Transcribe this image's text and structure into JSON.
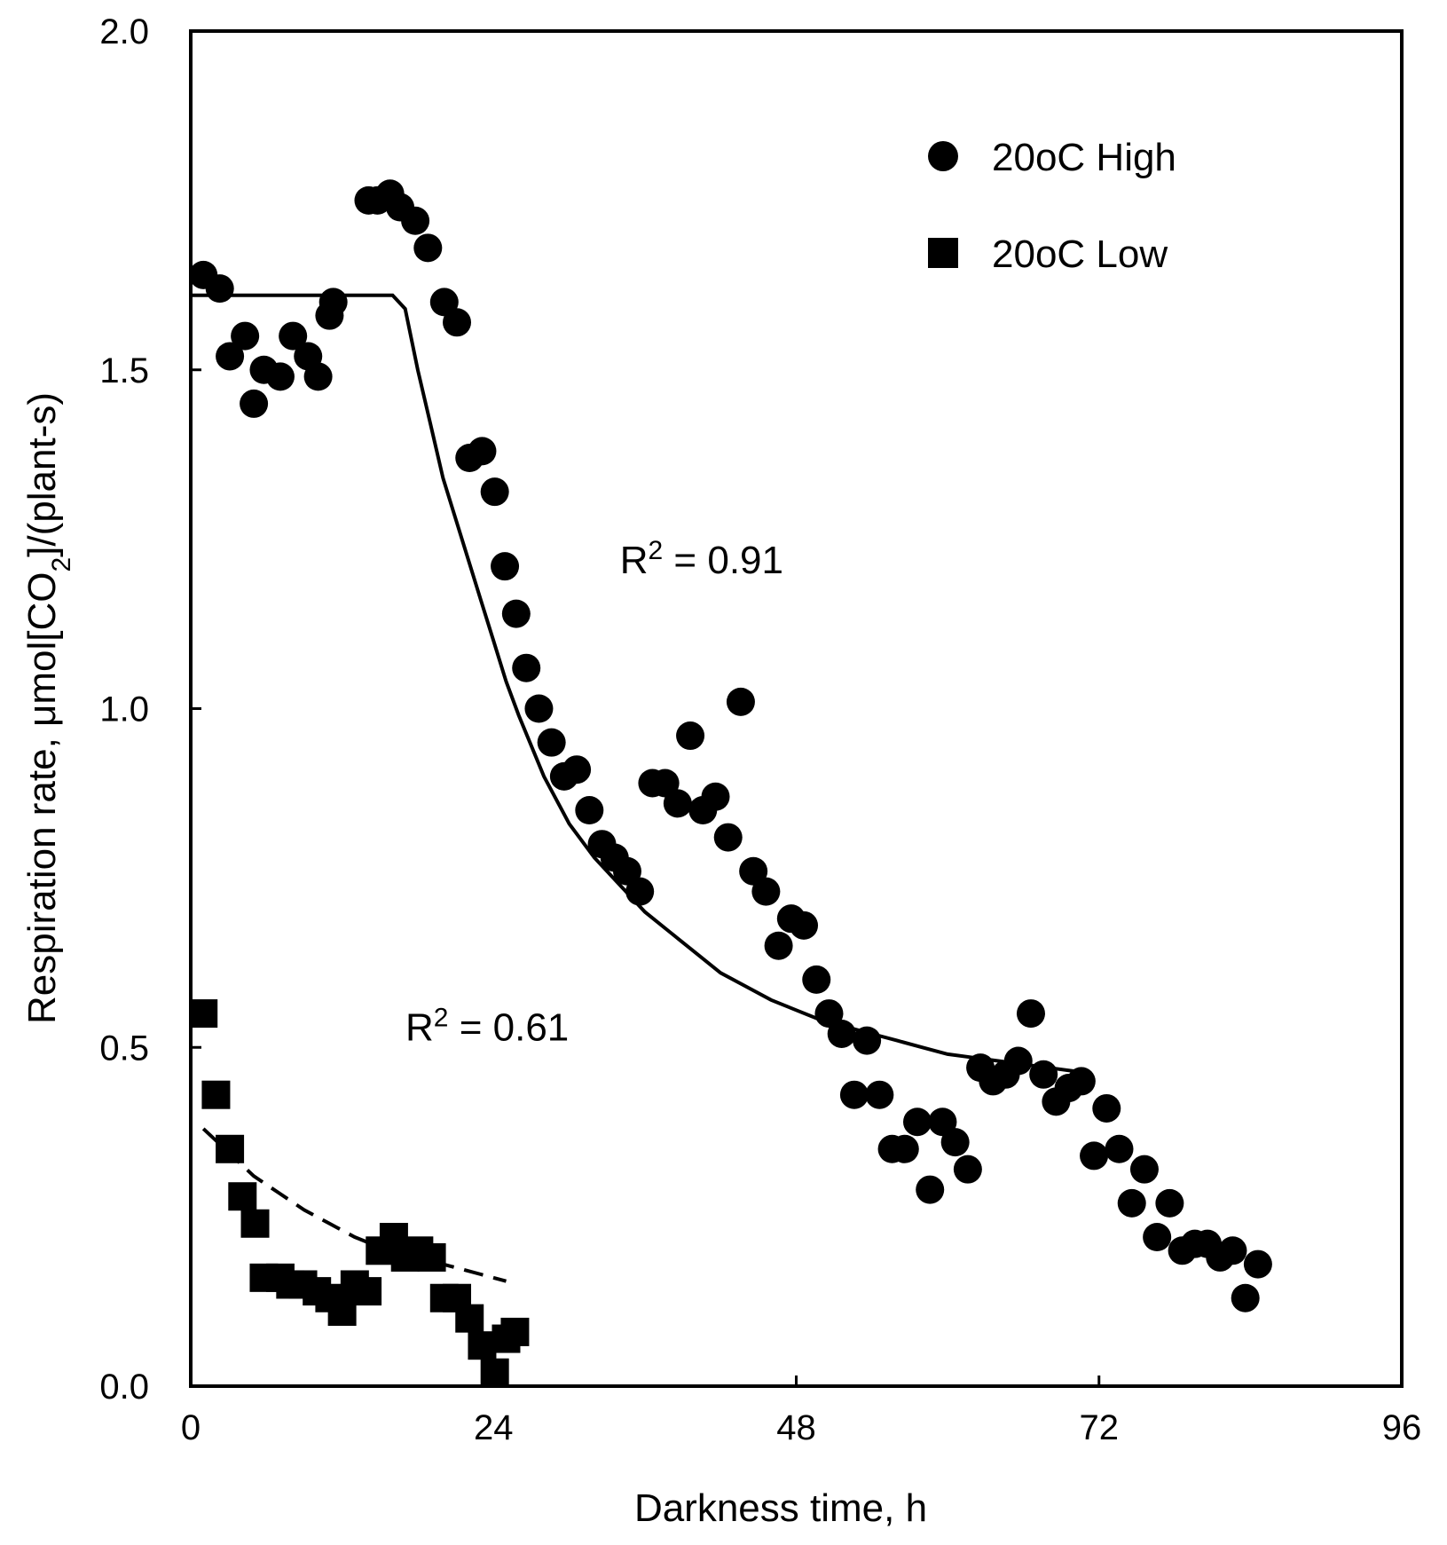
{
  "chart_data": {
    "type": "scatter",
    "title": "",
    "xlabel": "Darkness time, h",
    "ylabel": "Respiration rate, μmol[CO2]/(plant-s)",
    "ylabel_parts": {
      "main": "Respiration rate, μmol[CO",
      "sub": "2",
      "tail": "]/(plant-s)"
    },
    "xlim": [
      0,
      96
    ],
    "ylim": [
      0,
      2.0
    ],
    "xticks": [
      0,
      24,
      48,
      72,
      96
    ],
    "xtick_labels": [
      "0",
      "24",
      "48",
      "72",
      "96"
    ],
    "yticks": [
      0,
      0.5,
      1.0,
      1.5,
      2.0
    ],
    "ytick_labels": [
      "0.0",
      "0.5",
      "1.0",
      "1.5",
      "2.0"
    ],
    "grid": false,
    "legend_position": "top-right",
    "series": [
      {
        "name": "20oC High",
        "marker": "circle",
        "color": "#000000",
        "x": [
          1.0,
          2.3,
          3.1,
          4.3,
          5.0,
          5.8,
          7.1,
          8.1,
          9.3,
          10.1,
          11.0,
          11.3,
          14.1,
          14.8,
          15.8,
          16.6,
          17.8,
          18.8,
          20.1,
          21.1,
          22.1,
          23.1,
          24.1,
          24.9,
          25.8,
          26.6,
          27.6,
          28.6,
          29.6,
          30.6,
          31.6,
          32.6,
          33.6,
          34.6,
          35.6,
          36.6,
          37.6,
          38.6,
          39.6,
          40.6,
          41.6,
          42.6,
          43.6,
          44.6,
          45.6,
          46.6,
          47.6,
          48.6,
          49.6,
          50.6,
          51.6,
          52.6,
          53.6,
          54.6,
          55.6,
          56.6,
          57.6,
          58.6,
          59.6,
          60.6,
          61.6,
          62.6,
          63.6,
          64.6,
          65.6,
          66.6,
          67.6,
          68.6,
          69.6,
          70.6,
          71.6,
          72.6,
          73.6,
          74.6,
          75.6,
          76.6,
          77.6,
          78.6,
          79.6,
          80.6,
          81.6,
          82.6,
          83.6,
          84.6
        ],
        "y": [
          1.64,
          1.62,
          1.52,
          1.55,
          1.45,
          1.5,
          1.49,
          1.55,
          1.52,
          1.49,
          1.58,
          1.6,
          1.75,
          1.75,
          1.76,
          1.74,
          1.72,
          1.68,
          1.6,
          1.57,
          1.37,
          1.38,
          1.32,
          1.21,
          1.14,
          1.06,
          1.0,
          0.95,
          0.9,
          0.91,
          0.85,
          0.8,
          0.78,
          0.76,
          0.73,
          0.89,
          0.89,
          0.86,
          0.96,
          0.85,
          0.87,
          0.81,
          1.01,
          0.76,
          0.73,
          0.65,
          0.69,
          0.68,
          0.6,
          0.55,
          0.52,
          0.43,
          0.51,
          0.43,
          0.35,
          0.35,
          0.39,
          0.29,
          0.39,
          0.36,
          0.32,
          0.47,
          0.45,
          0.46,
          0.48,
          0.55,
          0.46,
          0.42,
          0.44,
          0.45,
          0.34,
          0.41,
          0.35,
          0.27,
          0.32,
          0.22,
          0.27,
          0.2,
          0.21,
          0.21,
          0.19,
          0.2,
          0.13,
          0.18
        ]
      },
      {
        "name": "20oC Low",
        "marker": "square",
        "color": "#000000",
        "x": [
          1.0,
          2.0,
          3.1,
          4.1,
          5.1,
          5.8,
          7.1,
          7.9,
          8.9,
          10.0,
          11.0,
          12.0,
          13.0,
          14.0,
          15.0,
          16.1,
          17.0,
          18.1,
          19.1,
          20.1,
          21.1,
          22.1,
          23.1,
          24.1,
          25.0,
          25.7
        ],
        "y": [
          0.55,
          0.43,
          0.35,
          0.28,
          0.24,
          0.16,
          0.16,
          0.15,
          0.15,
          0.14,
          0.13,
          0.11,
          0.15,
          0.14,
          0.2,
          0.22,
          0.19,
          0.2,
          0.19,
          0.13,
          0.13,
          0.1,
          0.06,
          0.02,
          0.07,
          0.08
        ]
      }
    ],
    "fits": [
      {
        "name": "20oC High fit",
        "style": "solid",
        "x": [
          0,
          16,
          17,
          18,
          19,
          20,
          21,
          22,
          23,
          24,
          25,
          26,
          28,
          30,
          32,
          34,
          36,
          38,
          40,
          42,
          44,
          46,
          48,
          50,
          52,
          54,
          56,
          58,
          60,
          62,
          64,
          66,
          68,
          70,
          71
        ],
        "y": [
          1.61,
          1.61,
          1.59,
          1.5,
          1.42,
          1.34,
          1.28,
          1.22,
          1.16,
          1.1,
          1.04,
          0.99,
          0.9,
          0.83,
          0.78,
          0.74,
          0.7,
          0.67,
          0.64,
          0.61,
          0.59,
          0.57,
          0.555,
          0.54,
          0.53,
          0.52,
          0.51,
          0.5,
          0.49,
          0.485,
          0.48,
          0.475,
          0.47,
          0.465,
          0.46
        ]
      },
      {
        "name": "20oC Low fit",
        "style": "dashed",
        "x": [
          1,
          3,
          5,
          7,
          9,
          11,
          13,
          15,
          17,
          19,
          21,
          23,
          25
        ],
        "y": [
          0.38,
          0.345,
          0.31,
          0.285,
          0.26,
          0.24,
          0.22,
          0.205,
          0.195,
          0.185,
          0.175,
          0.165,
          0.155
        ]
      }
    ],
    "annotations": [
      {
        "name": "r2-high",
        "text_main": "R",
        "text_sup": "2",
        "text_tail": " = 0.91",
        "x": 40.5,
        "y": 1.2
      },
      {
        "name": "r2-low",
        "text_main": "R",
        "text_sup": "2",
        "text_tail": " = 0.61",
        "x": 23.5,
        "y": 0.51
      }
    ]
  }
}
